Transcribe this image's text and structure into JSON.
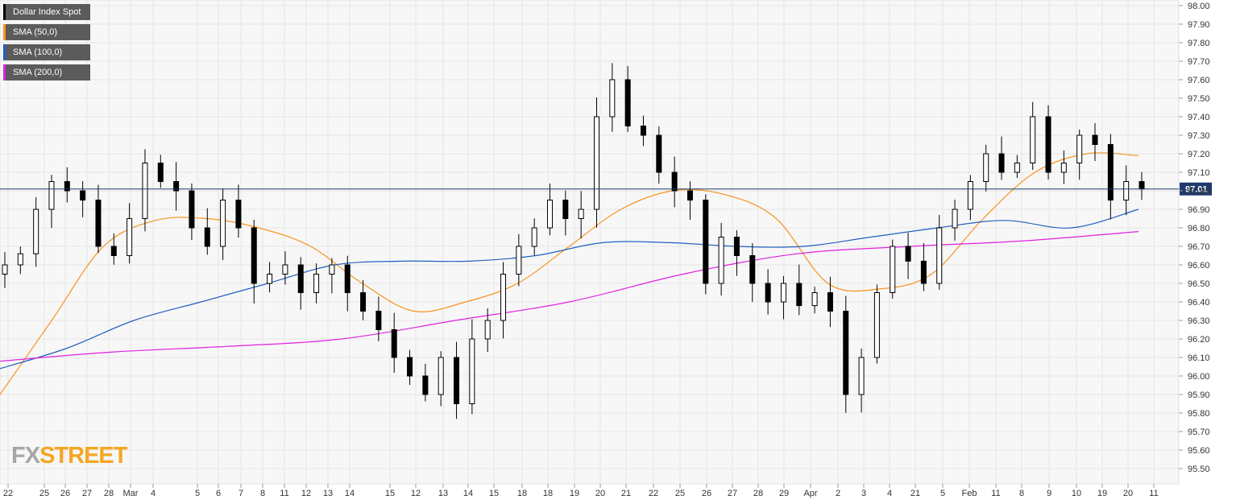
{
  "legend": [
    {
      "label": "Dollar Index Spot",
      "color": "#000000"
    },
    {
      "label": "SMA (50,0)",
      "color": "#f7931e"
    },
    {
      "label": "SMA (100,0)",
      "color": "#1f5fbf"
    },
    {
      "label": "SMA (200,0)",
      "color": "#e020e0"
    }
  ],
  "logo": {
    "part1": "FX",
    "part2": "STREET"
  },
  "last_price_label": "97.01",
  "chart_data": {
    "type": "candlestick",
    "title": "",
    "ylim": [
      95.45,
      98.0
    ],
    "y_ticks": [
      "98.00",
      "97.90",
      "97.80",
      "97.70",
      "97.60",
      "97.50",
      "97.40",
      "97.30",
      "97.20",
      "97.10",
      "97.00",
      "96.90",
      "96.80",
      "96.70",
      "96.60",
      "96.50",
      "96.40",
      "96.30",
      "96.20",
      "96.10",
      "96.00",
      "95.90",
      "95.80",
      "95.70",
      "95.60",
      "95.50"
    ],
    "x_ticks": [
      "Feb",
      "11",
      "12",
      "13",
      "14",
      "15",
      "18",
      "19",
      "20",
      "21",
      "22",
      "25",
      "26",
      "27",
      "28",
      "Mar",
      "4",
      "5",
      "6",
      "7",
      "8",
      "11",
      "12",
      "13",
      "14",
      "15",
      "18",
      "19",
      "20",
      "21",
      "22",
      "25",
      "26",
      "27",
      "28",
      "29",
      "Apr",
      "2",
      "3",
      "4",
      "5",
      "8",
      "9",
      "10",
      "11"
    ],
    "grid": true,
    "last_price": 97.01,
    "series": [
      {
        "name": "Dollar Index Spot",
        "candles_close": [
          96.6,
          96.66,
          96.9,
          97.05,
          97.0,
          96.95,
          96.7,
          96.65,
          96.85,
          97.15,
          97.05,
          97.0,
          96.8,
          96.7,
          96.95,
          96.8,
          96.5,
          96.55,
          96.6,
          96.45,
          96.55,
          96.6,
          96.45,
          96.35,
          96.25,
          96.1,
          96.0,
          95.9,
          96.1,
          95.85,
          96.2,
          96.3,
          96.55,
          96.7,
          96.8,
          96.95,
          96.85,
          96.9,
          97.4,
          97.6,
          97.35,
          97.3,
          97.1,
          97.0,
          96.95,
          96.5,
          96.75,
          96.65,
          96.5,
          96.4,
          96.5,
          96.38,
          96.45,
          96.35,
          95.9,
          96.1,
          96.45,
          96.7,
          96.62,
          96.5,
          96.8,
          96.9,
          97.05,
          97.2,
          97.1,
          97.15,
          97.4,
          97.1,
          97.15,
          97.3,
          97.25,
          96.95,
          97.05,
          97.01
        ]
      },
      {
        "name": "SMA (50,0)",
        "values": [
          95.9,
          96.3,
          96.7,
          96.84,
          96.85,
          96.8,
          96.7,
          96.5,
          96.35,
          96.4,
          96.5,
          96.7,
          96.9,
          97.0,
          96.98,
          96.85,
          96.5,
          96.47,
          96.55,
          96.85,
          97.1,
          97.2,
          97.19
        ]
      },
      {
        "name": "SMA (100,0)",
        "values": [
          96.04,
          96.15,
          96.3,
          96.4,
          96.5,
          96.6,
          96.62,
          96.62,
          96.65,
          96.72,
          96.72,
          96.7,
          96.7,
          96.75,
          96.8,
          96.84,
          96.8,
          96.9
        ]
      },
      {
        "name": "SMA (200,0)",
        "values": [
          96.08,
          96.13,
          96.16,
          96.2,
          96.3,
          96.4,
          96.55,
          96.66,
          96.7,
          96.73,
          96.78
        ]
      }
    ]
  }
}
